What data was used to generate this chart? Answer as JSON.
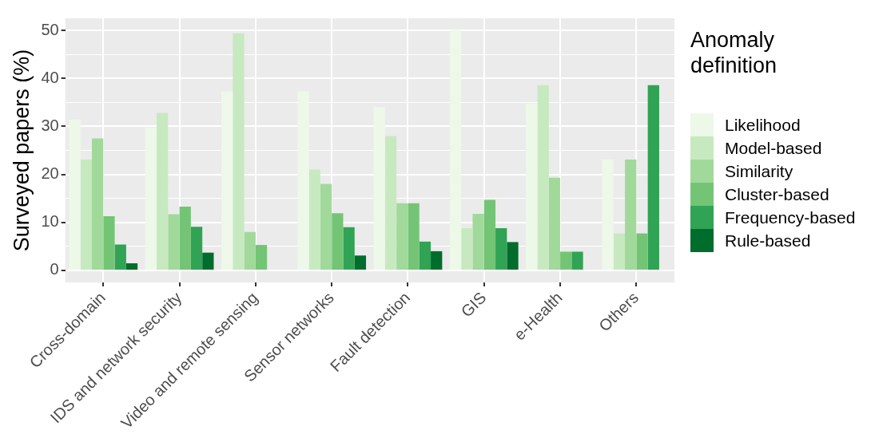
{
  "chart_data": {
    "type": "bar",
    "ylabel": "Surveyed papers (%)",
    "legend_title": "Anomaly definition",
    "categories": [
      "Cross-domain",
      "IDS and network security",
      "Video and remote sensing",
      "Sensor networks",
      "Fault detection",
      "GIS",
      "e-Health",
      "Others"
    ],
    "series": [
      {
        "name": "Likelihood",
        "color": "#edf8e9",
        "values": [
          31.4,
          29.7,
          37.3,
          37.3,
          34.0,
          50.0,
          34.7,
          23.1
        ]
      },
      {
        "name": "Model-based",
        "color": "#c7e9c0",
        "values": [
          23.1,
          32.8,
          49.4,
          21.0,
          28.0,
          8.8,
          38.6,
          7.7
        ]
      },
      {
        "name": "Similarity",
        "color": "#a1d99b",
        "values": [
          27.5,
          11.7,
          8.0,
          18.0,
          14.0,
          11.8,
          19.3,
          23.1
        ]
      },
      {
        "name": "Cluster-based",
        "color": "#74c476",
        "values": [
          11.3,
          13.3,
          5.3,
          11.9,
          14.0,
          14.7,
          3.9,
          7.7
        ]
      },
      {
        "name": "Frequency-based",
        "color": "#31a354",
        "values": [
          5.4,
          9.1,
          null,
          9.0,
          6.0,
          8.8,
          3.9,
          38.6
        ]
      },
      {
        "name": "Rule-based",
        "color": "#006d2c",
        "values": [
          1.5,
          3.7,
          null,
          3.1,
          4.0,
          5.9,
          null,
          null
        ]
      }
    ],
    "ylim": [
      -2.5,
      52.5
    ],
    "yticks": [
      0,
      {
        "value": 5,
        "label": null
      },
      10,
      {
        "value": 15,
        "label": null
      },
      20,
      {
        "value": 25,
        "label": null
      },
      30,
      {
        "value": 35,
        "label": null
      },
      40,
      {
        "value": 45,
        "label": null
      },
      50
    ],
    "grid": true,
    "legend": "right"
  }
}
